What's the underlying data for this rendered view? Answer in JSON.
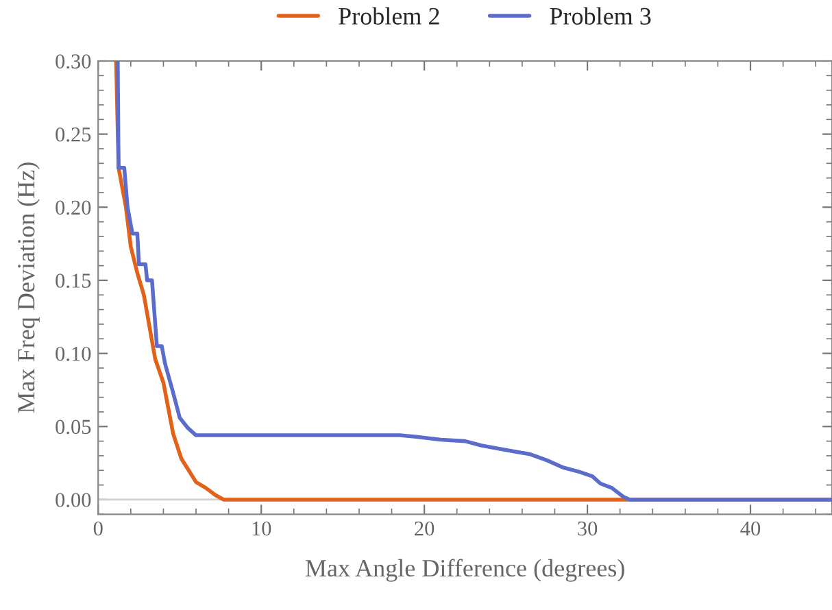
{
  "chart_data": {
    "type": "line",
    "xlabel": "Max Angle Difference (degrees)",
    "ylabel": "Max Freq Deviation (Hz)",
    "xlim": [
      0,
      45
    ],
    "ylim": [
      -0.01,
      0.3
    ],
    "xticks": [
      0,
      10,
      20,
      30,
      40
    ],
    "yticks": [
      {
        "value": 0,
        "label": "0.00"
      },
      {
        "value": 0.05,
        "label": "0.05"
      },
      {
        "value": 0.1,
        "label": "0.10"
      },
      {
        "value": 0.15,
        "label": "0.15"
      },
      {
        "value": 0.2,
        "label": "0.20"
      },
      {
        "value": 0.25,
        "label": "0.25"
      },
      {
        "value": 0.3,
        "label": "0.30"
      }
    ],
    "ref_lines": [
      {
        "axis": "y",
        "value": 0,
        "color": "#d0d0d0"
      }
    ],
    "grid": false,
    "legend": "top",
    "marker": "none",
    "line_style": "solid",
    "series": [
      {
        "name": "Problem 2",
        "color": "#e3621b",
        "x": [
          1.1,
          1.25,
          1.7,
          2.0,
          2.4,
          2.8,
          3.5,
          4.0,
          4.6,
          5.1,
          5.5,
          6.0,
          6.6,
          7.2,
          7.7,
          45
        ],
        "values": [
          0.3,
          0.227,
          0.2,
          0.173,
          0.155,
          0.14,
          0.096,
          0.08,
          0.045,
          0.028,
          0.021,
          0.012,
          0.008,
          0.003,
          0,
          0
        ]
      },
      {
        "name": "Problem 3",
        "color": "#5b6ccb",
        "x": [
          1.2,
          1.25,
          1.6,
          1.8,
          2.1,
          2.4,
          2.5,
          2.9,
          3.0,
          3.3,
          3.6,
          3.9,
          4.1,
          4.6,
          5.0,
          5.5,
          6.0,
          18.5,
          19.5,
          21,
          22.5,
          23.5,
          25,
          26.5,
          27.5,
          28.5,
          29.5,
          30.3,
          30.8,
          31.5,
          32.2,
          32.6,
          45
        ],
        "values": [
          0.3,
          0.227,
          0.227,
          0.2,
          0.182,
          0.182,
          0.161,
          0.161,
          0.15,
          0.15,
          0.105,
          0.105,
          0.093,
          0.073,
          0.056,
          0.049,
          0.044,
          0.044,
          0.043,
          0.041,
          0.04,
          0.037,
          0.034,
          0.031,
          0.027,
          0.022,
          0.019,
          0.016,
          0.011,
          0.008,
          0.002,
          0,
          0
        ]
      }
    ]
  }
}
